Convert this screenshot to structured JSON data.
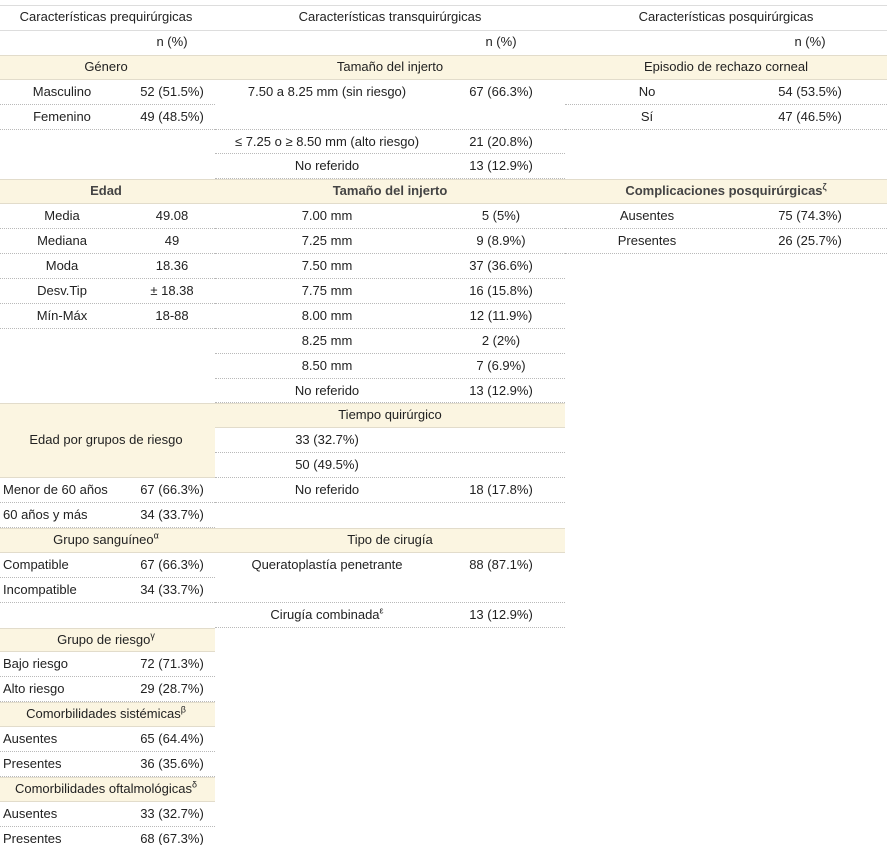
{
  "columns": [
    {
      "title": "Características prequirúrgicas",
      "n_label": "n (%)",
      "sections": [
        {
          "title": "Género",
          "rows": [
            {
              "label": "Masculino",
              "value": "52 (51.5%)"
            },
            {
              "label": "Femenino",
              "value": "49 (48.5%)"
            }
          ]
        },
        {
          "title": "Edad",
          "rows": [
            {
              "label": "Media",
              "value": "49.08"
            },
            {
              "label": "Mediana",
              "value": "49"
            },
            {
              "label": "Moda",
              "value": "18.36"
            },
            {
              "label": "Desv.Tip",
              "value": "± 18.38"
            },
            {
              "label": "Mín-Máx",
              "value": "18-88"
            }
          ]
        },
        {
          "title": "Edad por grupos de riesgo",
          "rows": [
            {
              "label": "Menor de 60 años",
              "value": "67 (66.3%)"
            },
            {
              "label": "60 años y más",
              "value": "34 (33.7%)"
            }
          ]
        },
        {
          "title": "Grupo sanguíneo",
          "sup": "α",
          "rows": [
            {
              "label": "Compatible",
              "value": "67 (66.3%)"
            },
            {
              "label": "Incompatible",
              "value": "34 (33.7%)"
            }
          ]
        },
        {
          "title": "Grupo de riesgo",
          "sup": "γ",
          "rows": [
            {
              "label": "Bajo riesgo",
              "value": "72 (71.3%)"
            },
            {
              "label": "Alto riesgo",
              "value": "29 (28.7%)"
            }
          ]
        },
        {
          "title": "Comorbilidades sistémicas",
          "sup": "β",
          "rows": [
            {
              "label": "Ausentes",
              "value": "65 (64.4%)"
            },
            {
              "label": "Presentes",
              "value": "36 (35.6%)"
            }
          ]
        },
        {
          "title": "Comorbilidades oftalmológicas",
          "sup": "δ",
          "rows": [
            {
              "label": "Ausentes",
              "value": "33 (32.7%)"
            },
            {
              "label": "Presentes",
              "value": "68 (67.3%)"
            }
          ]
        }
      ]
    },
    {
      "title": "Características transquirúrgicas",
      "n_label": "n (%)",
      "sections": [
        {
          "title": "Tamaño del injerto",
          "rows": [
            {
              "label": "7.50 a 8.25 mm (sin riesgo)",
              "value": "67 (66.3%)"
            },
            {
              "label": "≤ 7.25 o ≥ 8.50 mm (alto riesgo)",
              "value": "21 (20.8%)"
            },
            {
              "label": "No referido",
              "value": "13 (12.9%)"
            }
          ]
        },
        {
          "title": "Tamaño del injerto",
          "rows": [
            {
              "label": "7.00 mm",
              "value": "5 (5%)"
            },
            {
              "label": "7.25 mm",
              "value": "9 (8.9%)"
            },
            {
              "label": "7.50 mm",
              "value": "37 (36.6%)"
            },
            {
              "label": "7.75 mm",
              "value": "16 (15.8%)"
            },
            {
              "label": "8.00 mm",
              "value": "12 (11.9%)"
            },
            {
              "label": "8.25 mm",
              "value": "2 (2%)"
            },
            {
              "label": "8.50 mm",
              "value": "7 (6.9%)"
            },
            {
              "label": "No referido",
              "value": "13 (12.9%)"
            }
          ]
        },
        {
          "title": "Tiempo quirúrgico",
          "rows": [
            {
              "label": "33 (32.7%)"
            },
            {
              "label": "50 (49.5%)"
            },
            {
              "label": "No referido",
              "value": "18 (17.8%)"
            }
          ]
        },
        {
          "title": "Tipo de cirugía",
          "rows": [
            {
              "label": "Queratoplastía penetrante",
              "value": "88 (87.1%)"
            },
            {
              "label": "Cirugía combinada",
              "sup": "ε",
              "value": "13 (12.9%)"
            }
          ]
        }
      ]
    },
    {
      "title": "Características posquirúrgicas",
      "n_label": "n (%)",
      "sections": [
        {
          "title": "Episodio de rechazo corneal",
          "rows": [
            {
              "label": "No",
              "value": "54 (53.5%)"
            },
            {
              "label": "Sí",
              "value": "47 (46.5%)"
            }
          ]
        },
        {
          "title": "Complicaciones posquirúrgicas",
          "sup": "ζ",
          "rows": [
            {
              "label": "Ausentes",
              "value": "75 (74.3%)"
            },
            {
              "label": "Presentes",
              "value": "26 (25.7%)"
            }
          ]
        }
      ]
    }
  ]
}
